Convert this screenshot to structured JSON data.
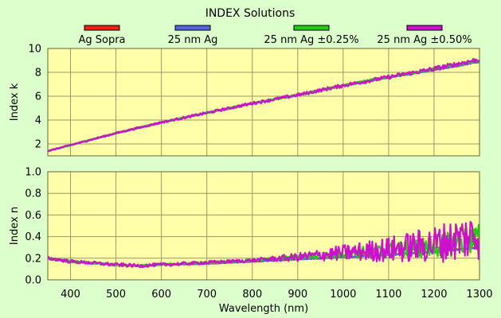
{
  "chart_data": {
    "type": "line",
    "title": "INDEX Solutions",
    "legend": {
      "placement": "top",
      "entries": [
        {
          "label": "Ag Sopra",
          "color": "#ee2211"
        },
        {
          "label": "25 nm Ag",
          "color": "#5566dd"
        },
        {
          "label": "25 nm Ag ±0.25%",
          "color": "#22cc11"
        },
        {
          "label": "25 nm Ag ±0.50%",
          "color": "#cc11cc"
        }
      ]
    },
    "xlabel": "Wavelength (nm)",
    "xlim": [
      350,
      1300
    ],
    "xticks": [
      400,
      500,
      600,
      700,
      800,
      900,
      1000,
      1100,
      1200,
      1300
    ],
    "grid": true,
    "panels": [
      {
        "ylabel": "Index k",
        "ylim": [
          1,
          10
        ],
        "yticks": [
          2,
          4,
          6,
          8,
          10
        ],
        "series": [
          {
            "name": "Ag Sopra",
            "x": [
              350,
              400,
              500,
              600,
              700,
              800,
              900,
              1000,
              1100,
              1200,
              1300
            ],
            "y": [
              1.4,
              1.9,
              2.9,
              3.8,
              4.6,
              5.4,
              6.1,
              6.9,
              7.6,
              8.2,
              8.9
            ]
          },
          {
            "name": "25 nm Ag",
            "x": [
              350,
              400,
              500,
              600,
              700,
              800,
              900,
              1000,
              1100,
              1200,
              1300
            ],
            "y": [
              1.4,
              1.9,
              2.9,
              3.8,
              4.6,
              5.4,
              6.1,
              6.9,
              7.6,
              8.2,
              8.9
            ]
          },
          {
            "name": "25 nm Ag ±0.25%",
            "x": [
              350,
              400,
              500,
              600,
              700,
              800,
              900,
              1000,
              1100,
              1200,
              1300
            ],
            "y": [
              1.4,
              1.9,
              2.9,
              3.8,
              4.6,
              5.4,
              6.1,
              6.9,
              7.6,
              8.3,
              9.0
            ]
          },
          {
            "name": "25 nm Ag ±0.50%",
            "x": [
              350,
              400,
              500,
              600,
              700,
              800,
              900,
              1000,
              1100,
              1200,
              1300
            ],
            "y": [
              1.4,
              1.9,
              2.9,
              3.8,
              4.6,
              5.4,
              6.1,
              6.9,
              7.6,
              8.3,
              9.1
            ]
          }
        ]
      },
      {
        "ylabel": "Index n",
        "ylim": [
          0.0,
          1.0
        ],
        "yticks": [
          0.0,
          0.2,
          0.4,
          0.6,
          0.8,
          1.0
        ],
        "ytick_labels": [
          "0.0",
          "0.2",
          "0.4",
          "0.6",
          "0.8",
          "1.0"
        ],
        "series": [
          {
            "name": "Ag Sopra",
            "x": [
              350,
              400,
              500,
              550,
              600,
              700,
              800,
              900,
              1000,
              1100,
              1200,
              1300
            ],
            "y": [
              0.2,
              0.17,
              0.14,
              0.13,
              0.14,
              0.15,
              0.17,
              0.19,
              0.21,
              0.23,
              0.26,
              0.3
            ]
          },
          {
            "name": "25 nm Ag",
            "x": [
              350,
              400,
              500,
              550,
              600,
              700,
              800,
              900,
              1000,
              1100,
              1200,
              1300
            ],
            "y": [
              0.2,
              0.17,
              0.14,
              0.13,
              0.14,
              0.15,
              0.17,
              0.19,
              0.21,
              0.23,
              0.26,
              0.3
            ]
          },
          {
            "name": "25 nm Ag ±0.25%",
            "x": [
              350,
              400,
              500,
              550,
              600,
              700,
              800,
              900,
              1000,
              1100,
              1200,
              1300
            ],
            "y": [
              0.2,
              0.17,
              0.14,
              0.13,
              0.14,
              0.16,
              0.18,
              0.21,
              0.24,
              0.27,
              0.31,
              0.38
            ]
          },
          {
            "name": "25 nm Ag ±0.50%",
            "x": [
              350,
              400,
              500,
              550,
              600,
              700,
              800,
              900,
              1000,
              1100,
              1200,
              1300
            ],
            "y": [
              0.2,
              0.17,
              0.14,
              0.13,
              0.14,
              0.16,
              0.18,
              0.21,
              0.25,
              0.28,
              0.33,
              0.42
            ]
          }
        ]
      }
    ],
    "colors": {
      "page_background": "#ddffcc",
      "plot_background": "#ffffaa",
      "grid": "#999966",
      "axis": "#666633"
    }
  }
}
